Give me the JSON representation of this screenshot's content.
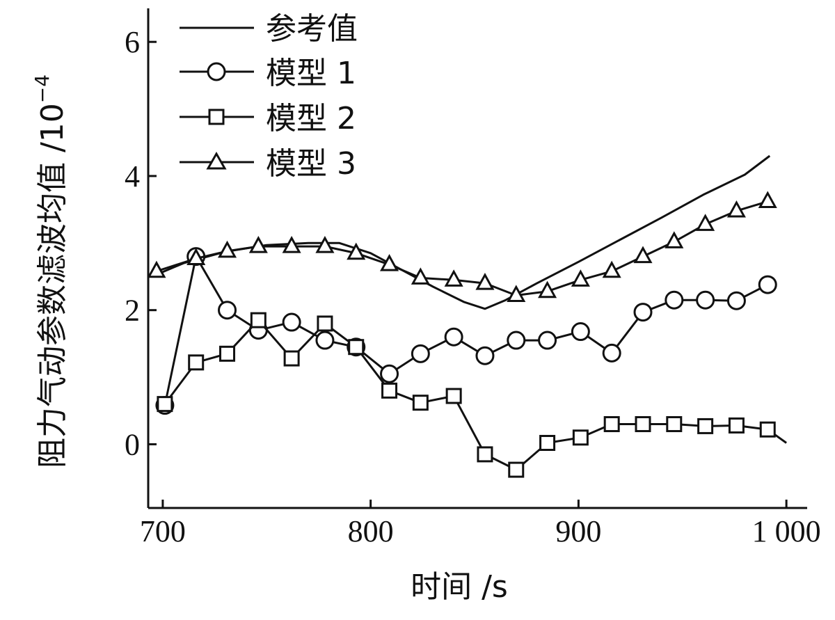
{
  "chart_data": {
    "type": "line",
    "xlabel": "时间 /s",
    "ylabel": "阻力气动参数滤波均值 /10",
    "ylabel_exponent": "−4",
    "xlim": [
      693,
      1010
    ],
    "ylim": [
      -0.95,
      6.5
    ],
    "xticks": [
      700,
      800,
      900,
      1000
    ],
    "xtick_labels": [
      "700",
      "800",
      "900",
      "1 000"
    ],
    "yticks": [
      0,
      2,
      4,
      6
    ],
    "ytick_labels": [
      "0",
      "2",
      "4",
      "6"
    ],
    "grid": false,
    "legend_position": "top-left",
    "series": [
      {
        "name": "参考值",
        "marker": "none",
        "x": [
          697,
          710,
          730,
          750,
          770,
          785,
          800,
          815,
          830,
          845,
          855,
          865,
          880,
          900,
          920,
          940,
          960,
          980,
          992
        ],
        "y": [
          2.53,
          2.7,
          2.87,
          2.97,
          3.0,
          3.0,
          2.85,
          2.6,
          2.35,
          2.12,
          2.02,
          2.15,
          2.4,
          2.72,
          3.05,
          3.38,
          3.72,
          4.02,
          4.3
        ]
      },
      {
        "name": "模型 1",
        "marker": "circle",
        "x": [
          701,
          716,
          731,
          746,
          762,
          778,
          793,
          809,
          824,
          840,
          855,
          870,
          885,
          901,
          916,
          931,
          946,
          961,
          976,
          991
        ],
        "y": [
          0.58,
          2.8,
          2.0,
          1.7,
          1.82,
          1.55,
          1.45,
          1.05,
          1.35,
          1.6,
          1.32,
          1.55,
          1.55,
          1.68,
          1.36,
          1.97,
          2.15,
          2.15,
          2.14,
          2.38
        ]
      },
      {
        "name": "模型 2",
        "marker": "square",
        "x": [
          701,
          716,
          731,
          746,
          762,
          778,
          793,
          809,
          824,
          840,
          855,
          870,
          885,
          901,
          916,
          931,
          946,
          961,
          976,
          991,
          1000
        ],
        "y": [
          0.6,
          1.22,
          1.35,
          1.85,
          1.28,
          1.8,
          1.45,
          0.8,
          0.62,
          0.72,
          -0.15,
          -0.38,
          0.02,
          0.1,
          0.3,
          0.3,
          0.3,
          0.27,
          0.28,
          0.22,
          0.02
        ]
      },
      {
        "name": "模型 3",
        "marker": "triangle",
        "x": [
          697,
          716,
          731,
          746,
          762,
          778,
          793,
          809,
          824,
          840,
          855,
          870,
          885,
          901,
          916,
          931,
          946,
          961,
          976,
          991
        ],
        "y": [
          2.58,
          2.77,
          2.88,
          2.95,
          2.95,
          2.95,
          2.85,
          2.68,
          2.48,
          2.45,
          2.4,
          2.22,
          2.28,
          2.45,
          2.58,
          2.8,
          3.02,
          3.28,
          3.48,
          3.62
        ]
      }
    ]
  }
}
